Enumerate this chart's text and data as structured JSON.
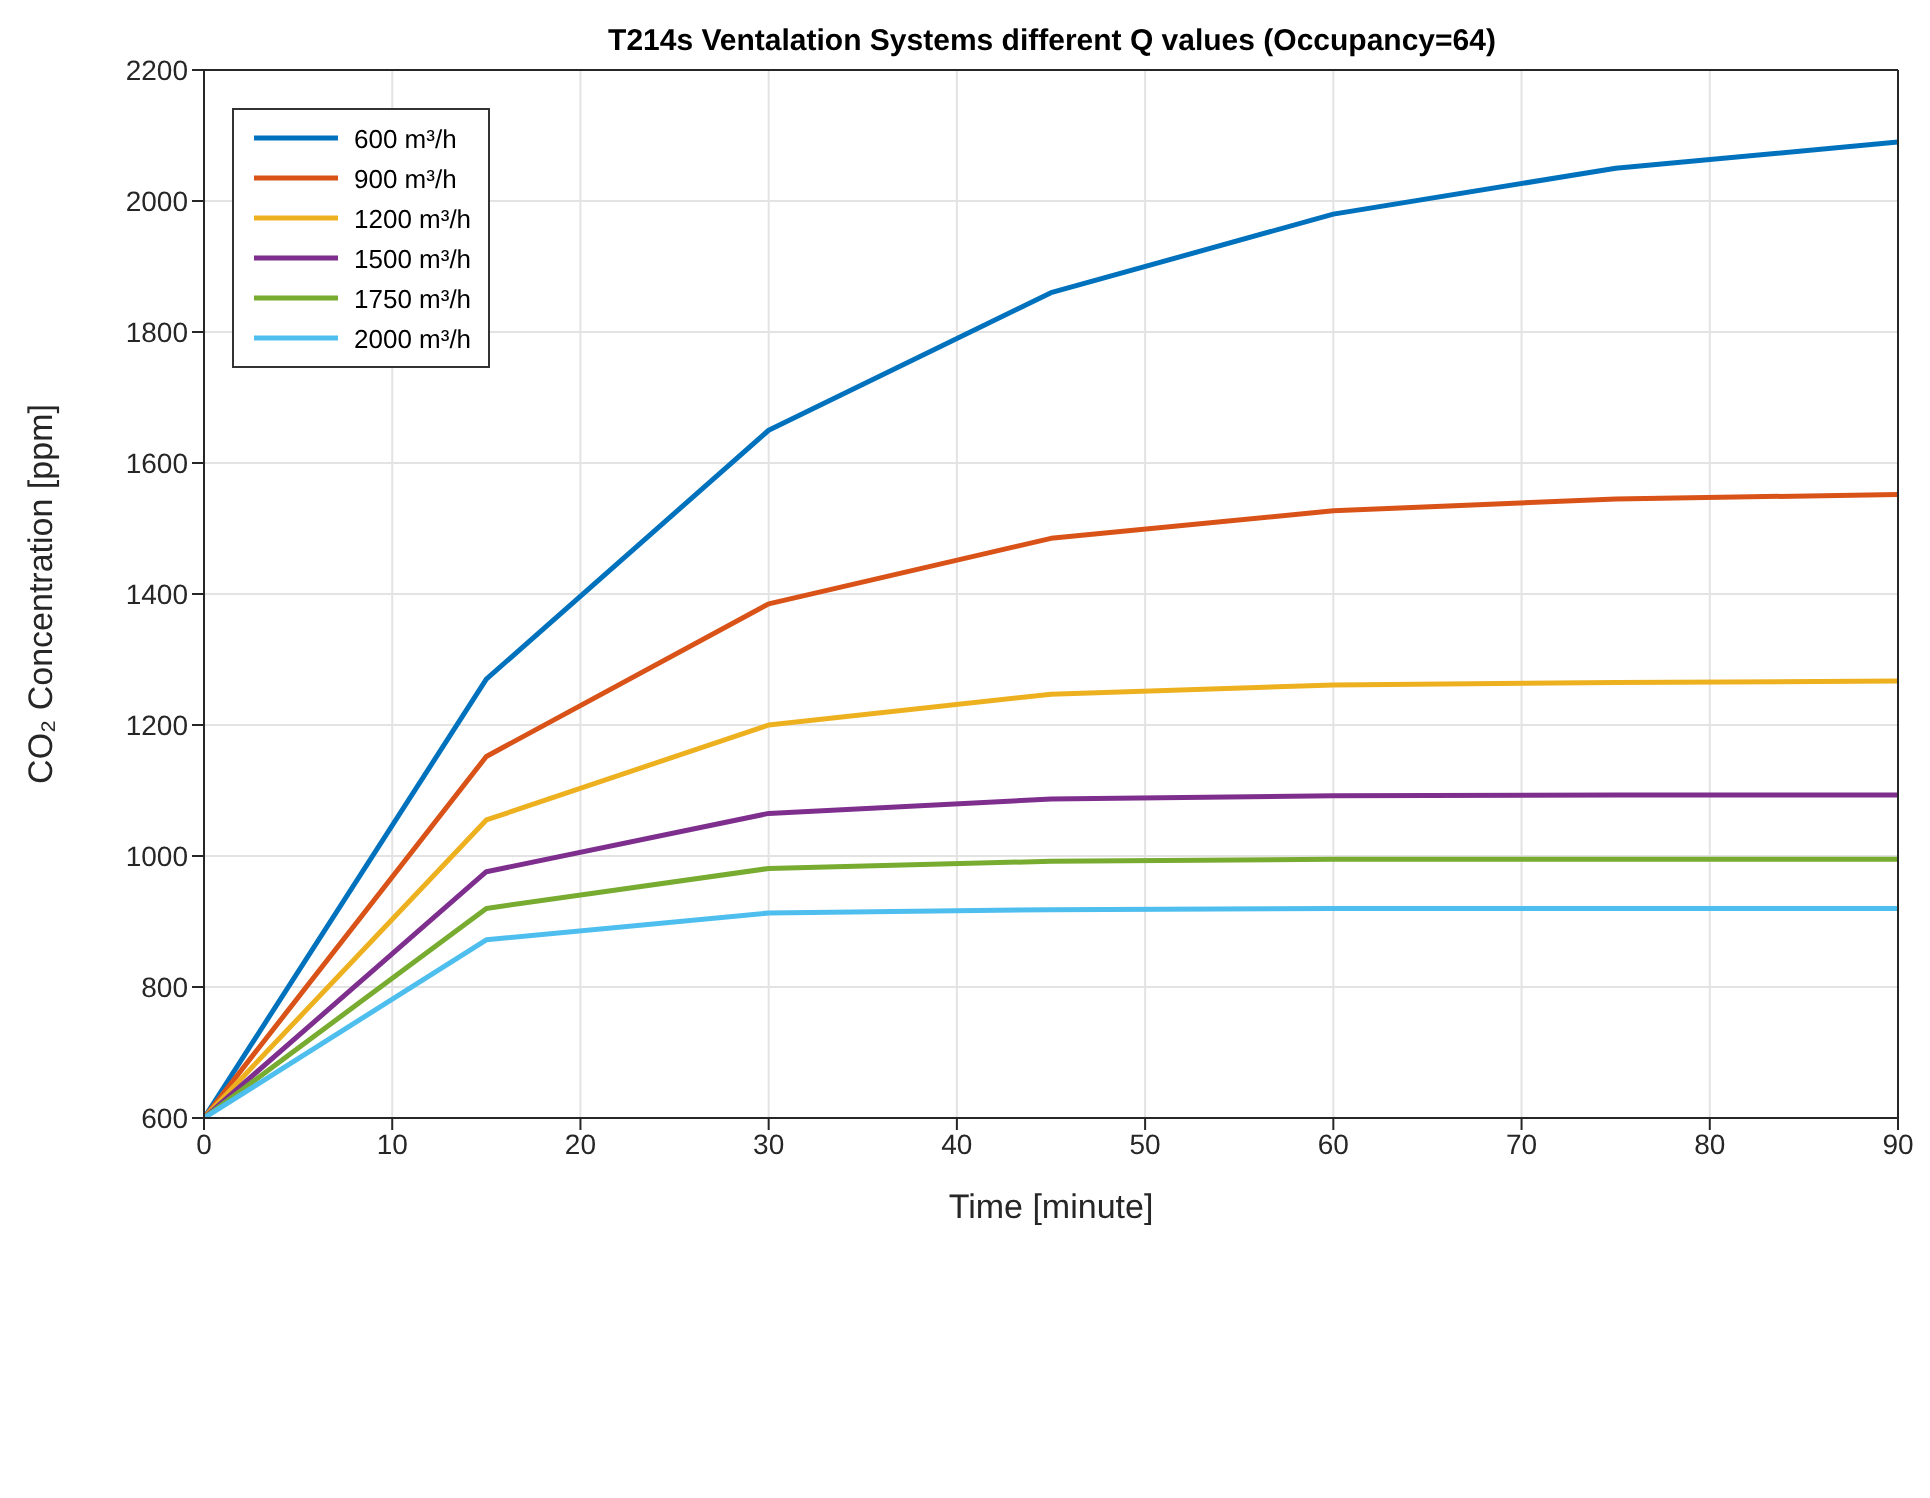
{
  "chart_data": {
    "type": "line",
    "title": "T214s Ventalation Systems different Q values (Occupancy=64)",
    "xlabel": "Time [minute]",
    "ylabel": "CO₂ Concentration [ppm]",
    "x": [
      0,
      15,
      30,
      45,
      60,
      75,
      90
    ],
    "series": [
      {
        "name": "600 m³/h",
        "color": "#0072bd",
        "values": [
          600,
          1270,
          1650,
          1860,
          1980,
          2050,
          2090
        ]
      },
      {
        "name": "900 m³/h",
        "color": "#d95319",
        "values": [
          600,
          1152,
          1385,
          1485,
          1527,
          1545,
          1552
        ]
      },
      {
        "name": "1200 m³/h",
        "color": "#edb120",
        "values": [
          600,
          1055,
          1200,
          1247,
          1261,
          1265,
          1267
        ]
      },
      {
        "name": "1500 m³/h",
        "color": "#7e2f8e",
        "values": [
          600,
          976,
          1065,
          1087,
          1092,
          1093,
          1093
        ]
      },
      {
        "name": "1750 m³/h",
        "color": "#77ac30",
        "values": [
          600,
          920,
          981,
          992,
          995,
          995,
          995
        ]
      },
      {
        "name": "2000 m³/h",
        "color": "#4dbeee",
        "values": [
          600,
          872,
          913,
          918,
          920,
          920,
          920
        ]
      }
    ],
    "xlim": [
      0,
      90
    ],
    "xticks": [
      0,
      10,
      20,
      30,
      40,
      50,
      60,
      70,
      80,
      90
    ],
    "ylim": [
      600,
      2200
    ],
    "yticks": [
      600,
      800,
      1000,
      1200,
      1400,
      1600,
      1800,
      2000,
      2200
    ],
    "grid": true,
    "legend": "top left",
    "line_style": "solid",
    "marker": "none"
  }
}
